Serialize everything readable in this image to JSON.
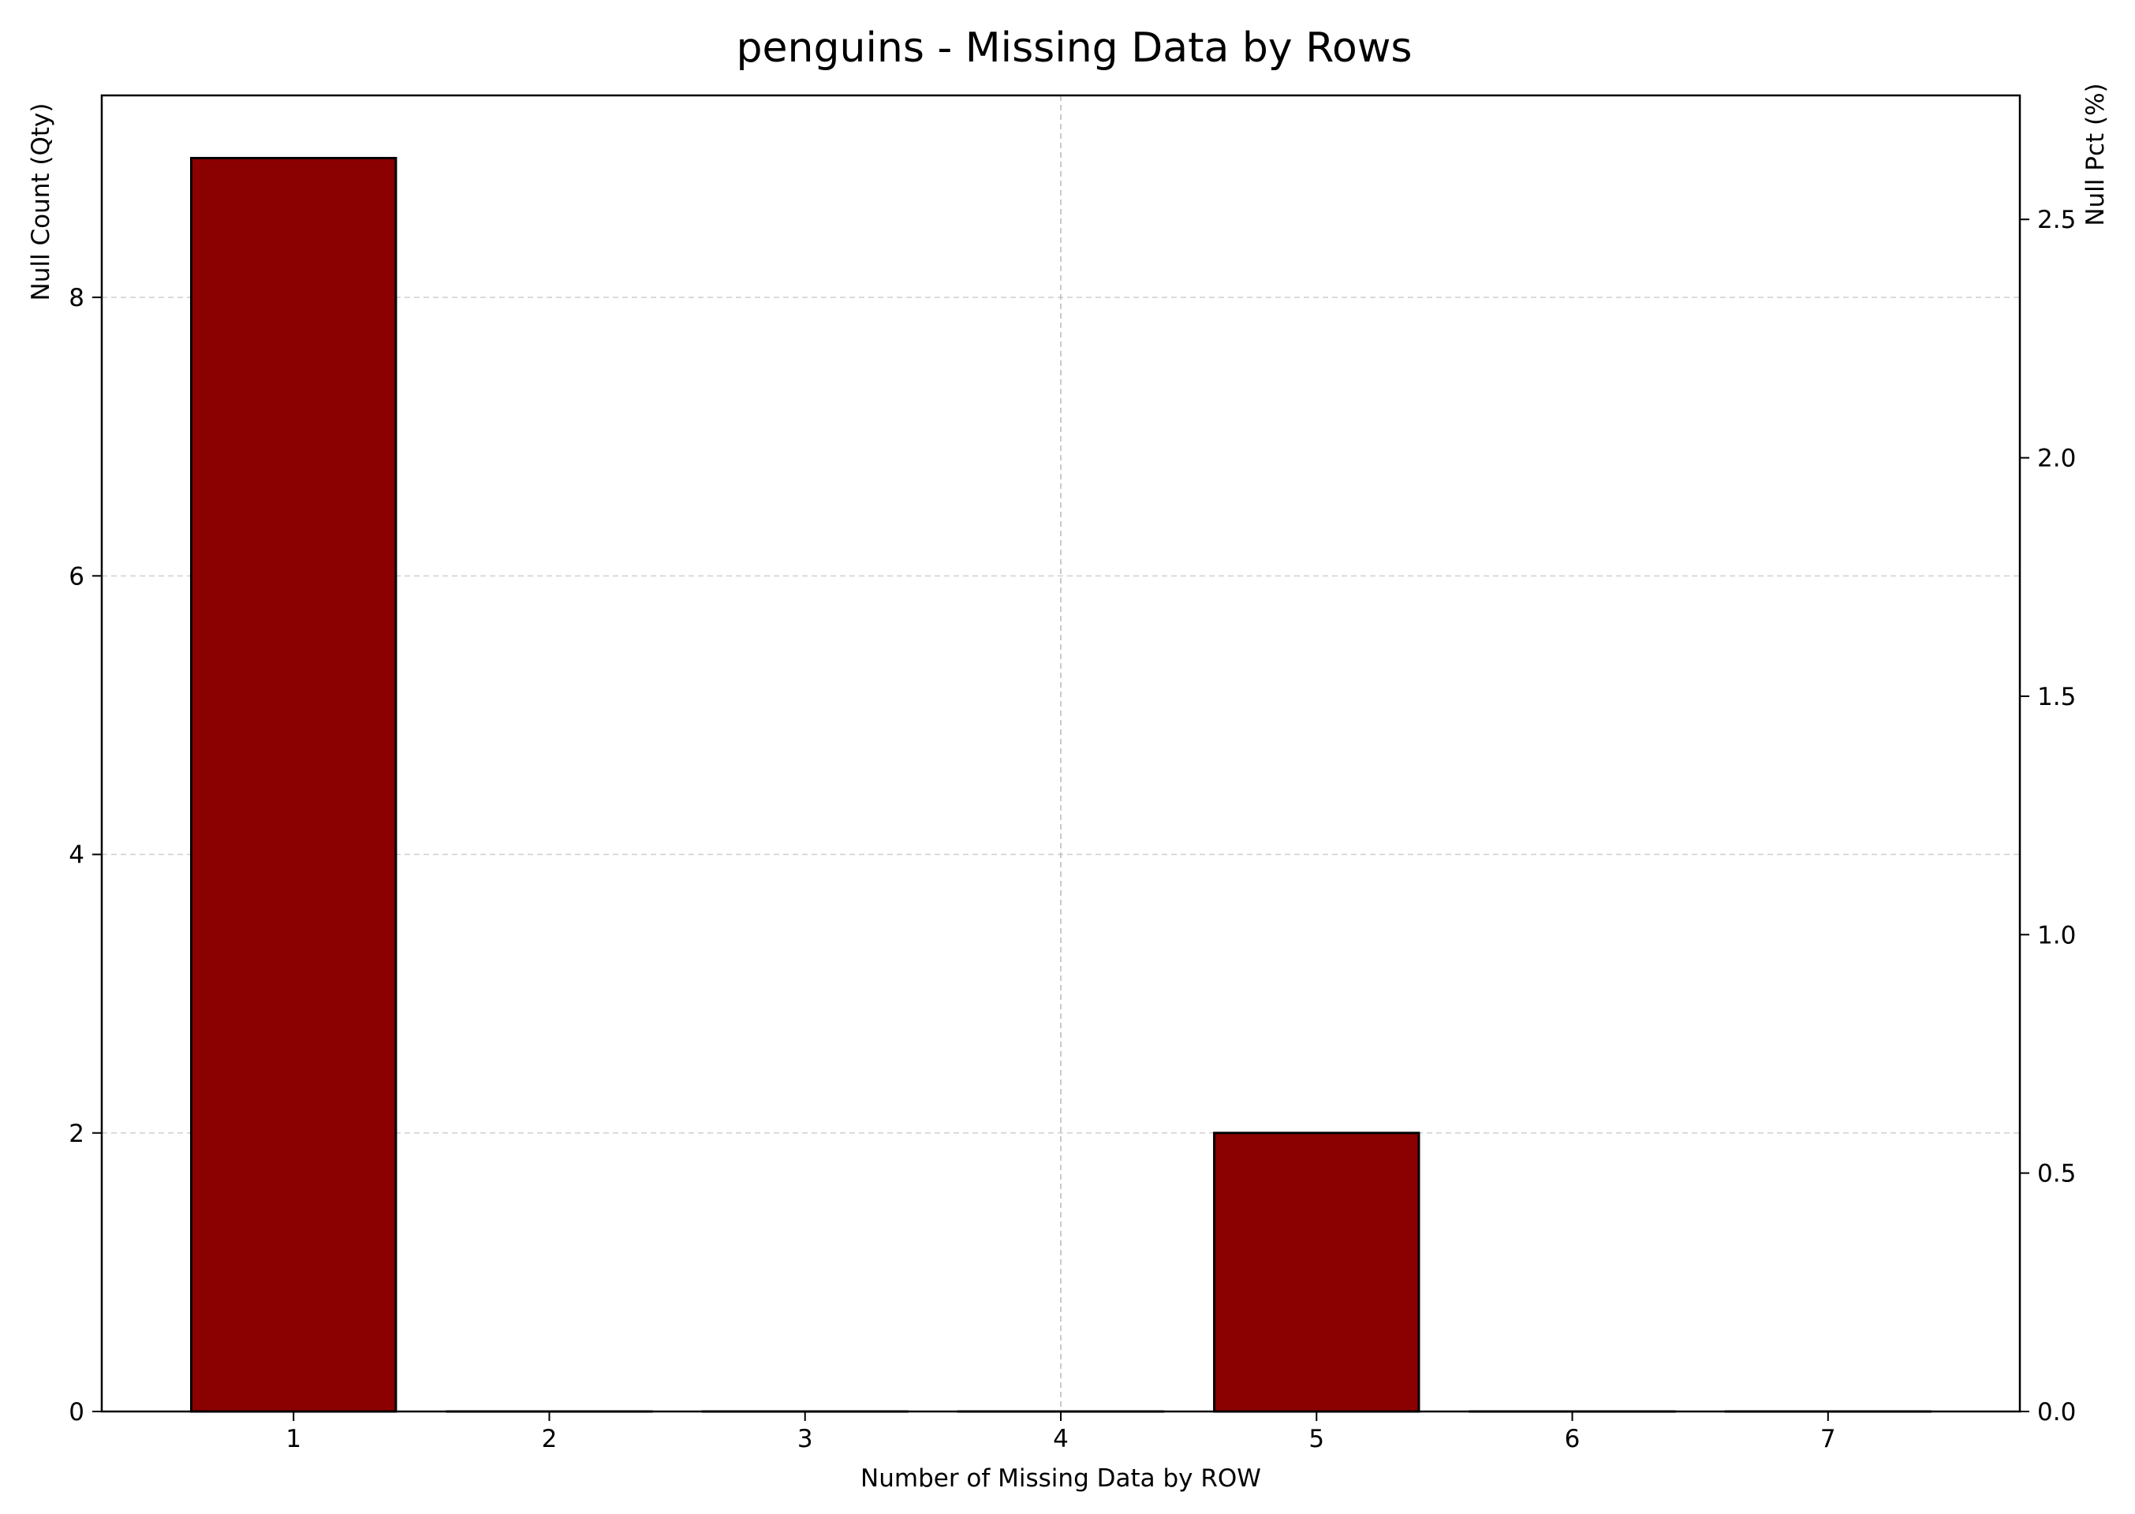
{
  "chart_data": {
    "type": "bar",
    "title": "penguins - Missing Data by Rows",
    "xlabel": "Number of Missing Data by ROW",
    "ylabel": "Null Count (Qty)",
    "y2label": "Null Pct (%)",
    "categories": [
      "1",
      "2",
      "3",
      "4",
      "5",
      "6",
      "7"
    ],
    "values": [
      9,
      0,
      0,
      0,
      2,
      0,
      0
    ],
    "ylim": [
      0,
      9.45
    ],
    "y_ticks": [
      0,
      2,
      4,
      6,
      8
    ],
    "y2lim": [
      0,
      2.76
    ],
    "y2_ticks": [
      "0.0",
      "0.5",
      "1.0",
      "1.5",
      "2.0",
      "2.5"
    ],
    "bar_color": "#8b0000",
    "edge_color": "#000000",
    "grid": true,
    "legend": "none"
  }
}
